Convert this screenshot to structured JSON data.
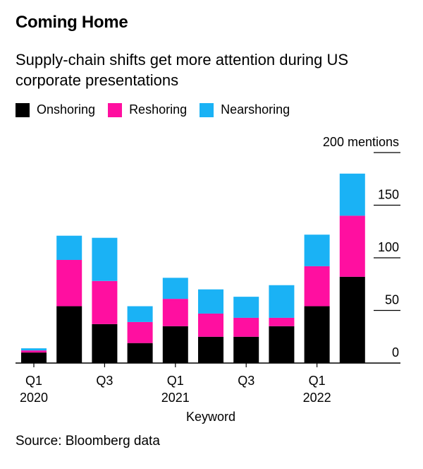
{
  "title": "Coming Home",
  "subtitle": "Supply-chain shifts get more attention during US corporate presentations",
  "source": "Source: Bloomberg data",
  "legend": [
    {
      "label": "Onshoring",
      "color": "#000000"
    },
    {
      "label": "Reshoring",
      "color": "#ff0fa0"
    },
    {
      "label": "Nearshoring",
      "color": "#1ab2f5"
    }
  ],
  "chart_data": {
    "type": "bar",
    "stacked": true,
    "title": "Coming Home",
    "xlabel": "Keyword",
    "ylabel": "mentions",
    "ylim": [
      0,
      200
    ],
    "y_ticks": [
      0,
      50,
      100,
      150,
      200
    ],
    "y_tick_labels": [
      "0",
      "50",
      "100",
      "150",
      "200 mentions"
    ],
    "categories": [
      "Q1 2020",
      "Q2 2020",
      "Q3 2020",
      "Q4 2020",
      "Q1 2021",
      "Q2 2021",
      "Q3 2021",
      "Q4 2021",
      "Q1 2022",
      "Q2 2022"
    ],
    "x_tick_labels": [
      {
        "index": 0,
        "line1": "Q1",
        "line2": "2020"
      },
      {
        "index": 2,
        "line1": "Q3",
        "line2": ""
      },
      {
        "index": 4,
        "line1": "Q1",
        "line2": "2021"
      },
      {
        "index": 6,
        "line1": "Q3",
        "line2": ""
      },
      {
        "index": 8,
        "line1": "Q1",
        "line2": "2022"
      }
    ],
    "series": [
      {
        "name": "Onshoring",
        "color": "#000000",
        "values": [
          10,
          54,
          37,
          19,
          35,
          25,
          25,
          35,
          54,
          82
        ]
      },
      {
        "name": "Reshoring",
        "color": "#ff0fa0",
        "values": [
          2,
          44,
          41,
          20,
          26,
          22,
          18,
          8,
          38,
          58
        ]
      },
      {
        "name": "Nearshoring",
        "color": "#1ab2f5",
        "values": [
          2,
          23,
          41,
          15,
          20,
          23,
          20,
          31,
          30,
          40
        ]
      }
    ]
  }
}
